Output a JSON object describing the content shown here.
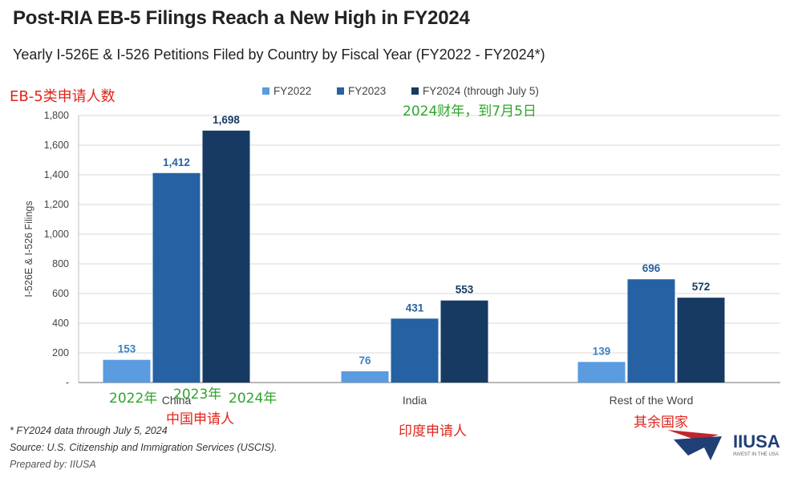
{
  "title": "Post-RIA EB-5 Filings Reach a New High in FY2024",
  "subtitle": "Yearly I-526E & I-526 Petitions Filed by Country by Fiscal Year (FY2022 - FY2024*)",
  "annotations": {
    "ylabel_cn": "EB-5类申请人数",
    "fy2024_cn": "2024财年，到7月5日",
    "y2022_cn": "2022年",
    "y2023_cn": "2023年",
    "y2024_cn": "2024年",
    "china_cn": "中国申请人",
    "india_cn": "印度申请人",
    "rest_cn": "其余国家"
  },
  "footnotes": {
    "note": "* FY2024 data through July 5, 2024",
    "source": "Source: U.S. Citizenship and Immigration Services (USCIS).",
    "prepared": "Prepared by: IIUSA"
  },
  "logo": {
    "name": "IIUSA",
    "tagline": "INVEST IN THE USA"
  },
  "colors": {
    "fy2022": "#5b9bdf",
    "fy2023": "#2662a3",
    "fy2024": "#173a62",
    "red": "#e0261b",
    "green": "#2fa52b"
  },
  "chart_data": {
    "type": "bar",
    "categories": [
      "China",
      "India",
      "Rest of the Word"
    ],
    "series": [
      {
        "name": "FY2022",
        "values": [
          153,
          76,
          139
        ]
      },
      {
        "name": "FY2023",
        "values": [
          1412,
          431,
          696
        ]
      },
      {
        "name": "FY2024 (through July 5)",
        "values": [
          1698,
          553,
          572
        ]
      }
    ],
    "data_labels": [
      [
        "153",
        "76",
        "139"
      ],
      [
        "1,412",
        "431",
        "696"
      ],
      [
        "1,698",
        "553",
        "572"
      ]
    ],
    "ylabel": "I-526E & I-526 Filings",
    "ylim": [
      0,
      1800
    ],
    "yticks": [
      0,
      200,
      400,
      600,
      800,
      1000,
      1200,
      1400,
      1600,
      1800
    ],
    "ytick_labels": [
      "-",
      "200",
      "400",
      "600",
      "800",
      "1,000",
      "1,200",
      "1,400",
      "1,600",
      "1,800"
    ],
    "grid": true,
    "legend": "top-center"
  }
}
